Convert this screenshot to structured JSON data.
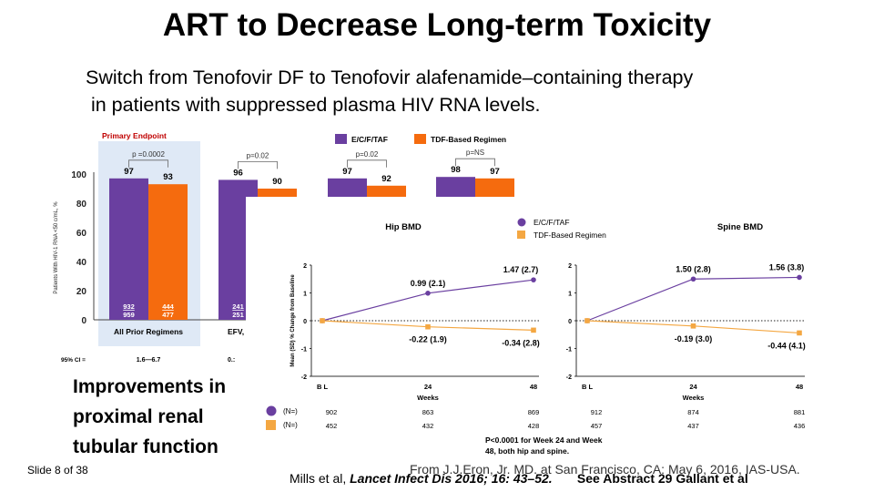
{
  "slide": {
    "title": "ART to Decrease Long-term Toxicity",
    "subtitle": "Switch from Tenofovir DF to Tenofovir alafenamide–containing therapy\n in patients with suppressed plasma HIV RNA levels.",
    "improvements": "Improvements in\nproximal renal\ntubular function",
    "slide_number": "Slide 8 of 38",
    "from_note": "From J.J.Eron, Jr. MD. at San Francisco, CA: May 6, 2016, IAS-USA.",
    "citation_author": "Mills et al, ",
    "citation_journal": "Lancet Infect Dis 2016; 16: 43–52.",
    "citation_see": "See Abstract 29 Gallant et al"
  },
  "colors": {
    "purple": "#6a3fa0",
    "orange": "#f56b0e",
    "tri_orange": "#f4a742",
    "highlight": "#dfe9f6",
    "red_label": "#c00000"
  },
  "chart_data": [
    {
      "type": "bar",
      "primary_endpoint_label": "Primary Endpoint",
      "ylabel": "Patients With HIV-1 RNA <50 c/mL, %",
      "ylim": [
        0,
        100
      ],
      "yticks": [
        "0",
        "20",
        "40",
        "60",
        "80",
        "100"
      ],
      "legend": [
        "E/C/F/TAF",
        "TDF-Based Regimen"
      ],
      "ci_label": "95% CI =",
      "groups": [
        {
          "name": "All Prior Regimens",
          "p": "p =0.0002",
          "values": [
            97,
            93
          ],
          "inner": [
            "932\n959",
            "444\n477"
          ],
          "ci": "1.6—6.7"
        },
        {
          "name": "EFV,",
          "p": "p=0.02",
          "values": [
            96,
            90
          ],
          "inner": [
            "241\n251",
            ""
          ],
          "ci": "0.:"
        },
        {
          "name": "",
          "p": "p=0.02",
          "values": [
            97,
            92
          ],
          "inner": [
            "",
            ""
          ],
          "ci": ""
        },
        {
          "name": "",
          "p": "p=NS",
          "values": [
            98,
            97
          ],
          "inner": [
            "",
            ""
          ],
          "ci": ""
        }
      ]
    },
    {
      "type": "line",
      "title": "Hip BMD",
      "ylabel": "Mean (SD) % Change from Baseline",
      "xlabel": "Weeks",
      "x": [
        "B L",
        "24",
        "48"
      ],
      "ylim": [
        -2,
        2
      ],
      "yticks": [
        "-2",
        "-1",
        "0",
        "1",
        "2"
      ],
      "series": [
        {
          "name": "E/C/F/TAF",
          "values": [
            0,
            0.99,
            1.47
          ],
          "labels": [
            "",
            "0.99 (2.1)",
            "1.47 (2.7)"
          ],
          "n": [
            "902",
            "863",
            "869"
          ]
        },
        {
          "name": "TDF-Based Regimen",
          "values": [
            0,
            -0.22,
            -0.34
          ],
          "labels": [
            "",
            "-0.22 (1.9)",
            "-0.34 (2.8)"
          ],
          "n": [
            "452",
            "432",
            "428"
          ]
        }
      ],
      "n_label": "(N=)"
    },
    {
      "type": "line",
      "title": "Spine BMD",
      "xlabel": "Weeks",
      "x": [
        "B L",
        "24",
        "48"
      ],
      "ylim": [
        -2,
        2
      ],
      "yticks": [
        "-2",
        "-1",
        "0",
        "1",
        "2"
      ],
      "series": [
        {
          "name": "E/C/F/TAF",
          "values": [
            0,
            1.5,
            1.56
          ],
          "labels": [
            "",
            "1.50 (2.8)",
            "1.56 (3.8)"
          ],
          "n": [
            "912",
            "874",
            "881"
          ]
        },
        {
          "name": "TDF-Based Regimen",
          "values": [
            0,
            -0.19,
            -0.44
          ],
          "labels": [
            "",
            "-0.19 (3.0)",
            "-0.44 (4.1)"
          ],
          "n": [
            "457",
            "437",
            "436"
          ]
        }
      ]
    }
  ],
  "footnote": "P<0.0001 for Week 24 and Week\n48, both hip and spine."
}
